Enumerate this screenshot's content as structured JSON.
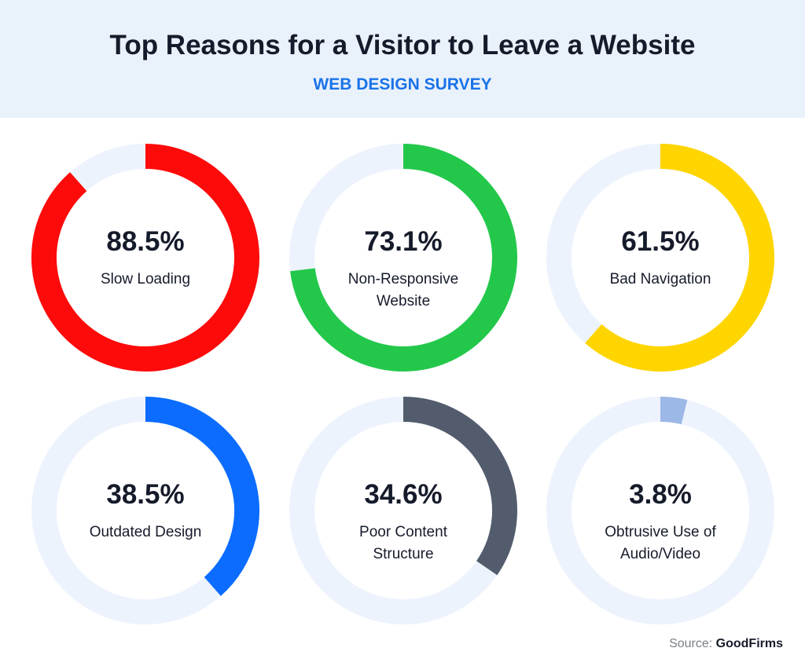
{
  "title": "Top Reasons for a Visitor to Leave a Website",
  "subtitle": "WEB DESIGN SURVEY",
  "source_label": "Source:",
  "source": "GoodFirms",
  "track_color": "#edf3fd",
  "chart_data": [
    {
      "type": "donut",
      "title": "Slow Loading",
      "values": [
        88.5
      ],
      "value_labels": [
        "88.5%"
      ],
      "ylim": [
        0,
        100
      ],
      "color": "#fd0a0a"
    },
    {
      "type": "donut",
      "title": "Non-Responsive Website",
      "values": [
        73.1
      ],
      "value_labels": [
        "73.1%"
      ],
      "ylim": [
        0,
        100
      ],
      "color": "#23c84b"
    },
    {
      "type": "donut",
      "title": "Bad Navigation",
      "values": [
        61.5
      ],
      "value_labels": [
        "61.5%"
      ],
      "ylim": [
        0,
        100
      ],
      "color": "#ffd500"
    },
    {
      "type": "donut",
      "title": "Outdated Design",
      "values": [
        38.5
      ],
      "value_labels": [
        "38.5%"
      ],
      "ylim": [
        0,
        100
      ],
      "color": "#0b6cff"
    },
    {
      "type": "donut",
      "title": "Poor Content Structure",
      "values": [
        34.6
      ],
      "value_labels": [
        "34.6%"
      ],
      "ylim": [
        0,
        100
      ],
      "color": "#525c6c"
    },
    {
      "type": "donut",
      "title": "Obtrusive Use of Audio/Video",
      "values": [
        3.8
      ],
      "value_labels": [
        "3.8%"
      ],
      "ylim": [
        0,
        100
      ],
      "color": "#9cb8e6"
    }
  ]
}
